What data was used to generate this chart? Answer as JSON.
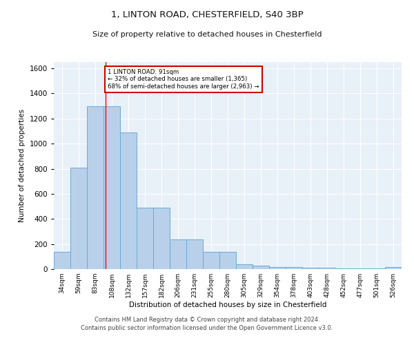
{
  "title1": "1, LINTON ROAD, CHESTERFIELD, S40 3BP",
  "title2": "Size of property relative to detached houses in Chesterfield",
  "xlabel": "Distribution of detached houses by size in Chesterfield",
  "ylabel": "Number of detached properties",
  "footer1": "Contains HM Land Registry data © Crown copyright and database right 2024.",
  "footer2": "Contains public sector information licensed under the Open Government Licence v3.0.",
  "annotation_line1": "1 LINTON ROAD: 91sqm",
  "annotation_line2": "← 32% of detached houses are smaller (1,365)",
  "annotation_line3": "68% of semi-detached houses are larger (2,963) →",
  "bar_labels": [
    "34sqm",
    "59sqm",
    "83sqm",
    "108sqm",
    "132sqm",
    "157sqm",
    "182sqm",
    "206sqm",
    "231sqm",
    "255sqm",
    "280sqm",
    "305sqm",
    "329sqm",
    "354sqm",
    "378sqm",
    "403sqm",
    "428sqm",
    "452sqm",
    "477sqm",
    "501sqm",
    "526sqm"
  ],
  "bar_values": [
    140,
    810,
    1300,
    1300,
    1090,
    490,
    490,
    235,
    235,
    135,
    135,
    40,
    25,
    15,
    15,
    10,
    10,
    5,
    5,
    5,
    15
  ],
  "bar_color": "#b8d0ea",
  "bar_edge_color": "#6aaad4",
  "ylim": [
    0,
    1650
  ],
  "red_line_x": 2.62,
  "background_color": "#e8f0f8",
  "annotation_box_color": "#ffffff",
  "annotation_box_edge": "#cc0000",
  "grid_color": "#ffffff",
  "fig_bg": "#ffffff"
}
